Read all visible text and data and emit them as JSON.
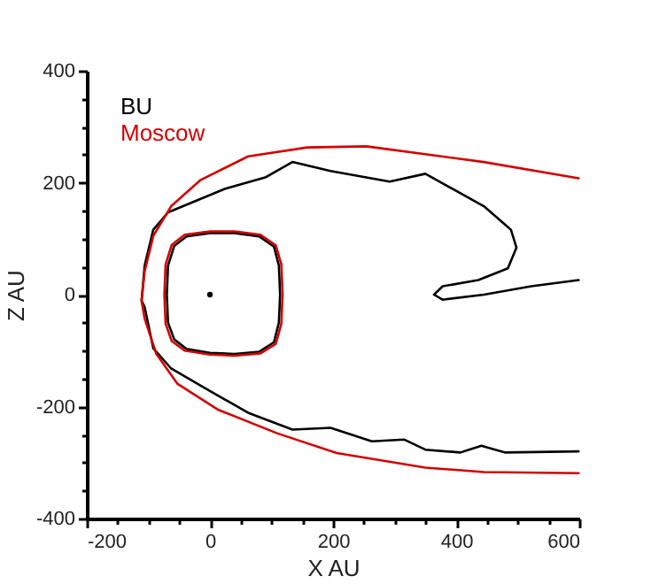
{
  "chart_data": {
    "type": "line",
    "xlabel": "X AU",
    "ylabel": "Z AU",
    "xlim": [
      -200,
      600
    ],
    "ylim": [
      -400,
      400
    ],
    "xticks": [
      -200,
      {
        "value": -150,
        "label": null
      },
      {
        "value": -100,
        "label": null
      },
      {
        "value": -50,
        "label": null
      },
      0,
      {
        "value": 50,
        "label": null
      },
      {
        "value": 100,
        "label": null
      },
      {
        "value": 150,
        "label": null
      },
      200,
      {
        "value": 250,
        "label": null
      },
      {
        "value": 300,
        "label": null
      },
      {
        "value": 350,
        "label": null
      },
      400,
      {
        "value": 450,
        "label": null
      },
      {
        "value": 500,
        "label": null
      },
      {
        "value": 550,
        "label": null
      },
      600
    ],
    "yticks": [
      -400,
      {
        "value": -350,
        "label": null
      },
      {
        "value": -300,
        "label": null
      },
      {
        "value": -250,
        "label": null
      },
      -200,
      {
        "value": -150,
        "label": null
      },
      {
        "value": -100,
        "label": null
      },
      {
        "value": -50,
        "label": null
      },
      0,
      {
        "value": 50,
        "label": null
      },
      {
        "value": 100,
        "label": null
      },
      {
        "value": 150,
        "label": null
      },
      200,
      {
        "value": 250,
        "label": null
      },
      {
        "value": 300,
        "label": null
      },
      {
        "value": 350,
        "label": null
      },
      400
    ],
    "grid": false,
    "legend": "top left",
    "marker": "none",
    "line_style": "solid",
    "series": [
      {
        "name": "BU",
        "color": "#000000",
        "x": [
          599,
          479,
          441,
          407,
          350,
          316,
          263,
          196,
          134,
          62,
          -5,
          -63,
          -92,
          -106,
          -111,
          -106,
          -92,
          -68,
          24,
          91,
          134,
          196,
          292,
          350,
          445,
          489,
          498,
          484,
          436,
          378,
          364,
          378,
          445,
          522,
          599
        ],
        "values": [
          -280,
          -282,
          -270,
          -282,
          -277,
          -259,
          -262,
          -238,
          -241,
          -211,
          -169,
          -132,
          -96,
          -22,
          -11,
          52,
          116,
          147,
          189,
          210,
          237,
          221,
          202,
          216,
          158,
          116,
          84,
          47,
          26,
          15,
          0,
          -9,
          0,
          15,
          26
        ]
      },
      {
        "name": "Moscow",
        "color": "#d40000",
        "x": [
          599,
          445,
          254,
          158,
          62,
          -15,
          -63,
          -92,
          -106,
          -111,
          -106,
          -87,
          -53,
          14,
          110,
          206,
          350,
          445,
          599
        ],
        "values": [
          208,
          237,
          265,
          263,
          247,
          205,
          158,
          105,
          42,
          -11,
          -43,
          -106,
          -159,
          -206,
          -248,
          -283,
          -309,
          -317,
          -319
        ]
      },
      {
        "type": "scatter",
        "color": "#000000",
        "marker": "circle",
        "x": [
          0
        ],
        "values": [
          0
        ]
      }
    ]
  }
}
